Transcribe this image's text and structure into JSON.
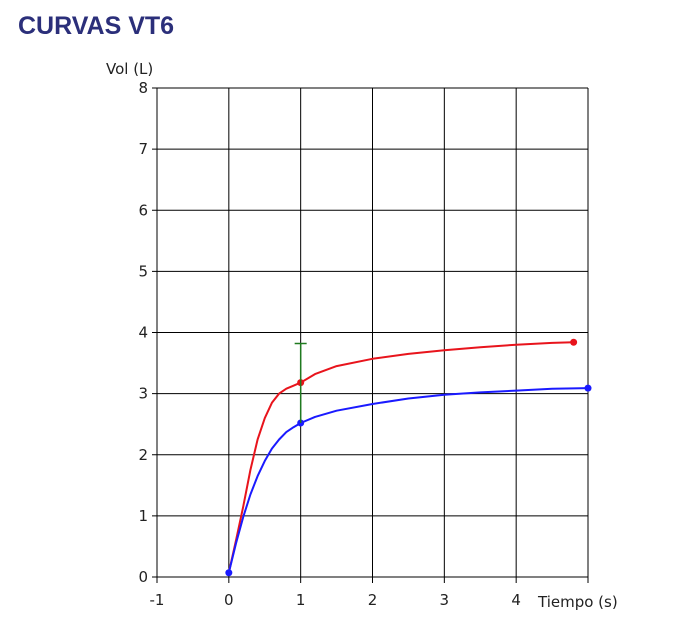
{
  "title": "CURVAS VT6",
  "chart_data": {
    "type": "line",
    "xlabel": "Tiempo (s)",
    "ylabel": "Vol (L)",
    "xlim": [
      -1,
      5
    ],
    "ylim": [
      0,
      8
    ],
    "x_ticks": [
      -1,
      0,
      1,
      2,
      3,
      4,
      5
    ],
    "x_tick_labels": [
      "-1",
      "0",
      "1",
      "2",
      "3",
      "4",
      ""
    ],
    "y_ticks": [
      0,
      1,
      2,
      3,
      4,
      5,
      6,
      7,
      8
    ],
    "y_tick_labels": [
      "0",
      "1",
      "2",
      "3",
      "4",
      "5",
      "6",
      "7",
      "8"
    ],
    "grid": true,
    "series": [
      {
        "color": "#e8141c",
        "x": [
          0,
          0.1,
          0.2,
          0.3,
          0.4,
          0.5,
          0.6,
          0.7,
          0.8,
          0.9,
          1.0,
          1.2,
          1.5,
          2.0,
          2.5,
          3.0,
          3.5,
          4.0,
          4.5,
          4.8
        ],
        "y": [
          0.07,
          0.6,
          1.15,
          1.75,
          2.25,
          2.6,
          2.85,
          3.0,
          3.08,
          3.13,
          3.18,
          3.32,
          3.45,
          3.57,
          3.65,
          3.71,
          3.76,
          3.8,
          3.83,
          3.84
        ],
        "markers": [
          [
            1.0,
            3.18
          ],
          [
            4.8,
            3.84
          ]
        ]
      },
      {
        "color": "#1a1aff",
        "x": [
          0,
          0.1,
          0.2,
          0.3,
          0.4,
          0.5,
          0.6,
          0.7,
          0.8,
          0.9,
          1.0,
          1.2,
          1.5,
          2.0,
          2.5,
          3.0,
          3.5,
          4.0,
          4.5,
          5.0
        ],
        "y": [
          0.07,
          0.55,
          0.98,
          1.35,
          1.65,
          1.9,
          2.1,
          2.25,
          2.37,
          2.45,
          2.52,
          2.62,
          2.72,
          2.83,
          2.92,
          2.98,
          3.02,
          3.05,
          3.08,
          3.09
        ],
        "markers": [
          [
            0.0,
            0.07
          ],
          [
            1.0,
            2.52
          ],
          [
            5.0,
            3.09
          ]
        ]
      }
    ],
    "annotations": [
      {
        "type": "vertical-bar",
        "color": "#1f7a1f",
        "x": 1.0,
        "y_from": 2.52,
        "y_to": 3.82
      }
    ]
  }
}
